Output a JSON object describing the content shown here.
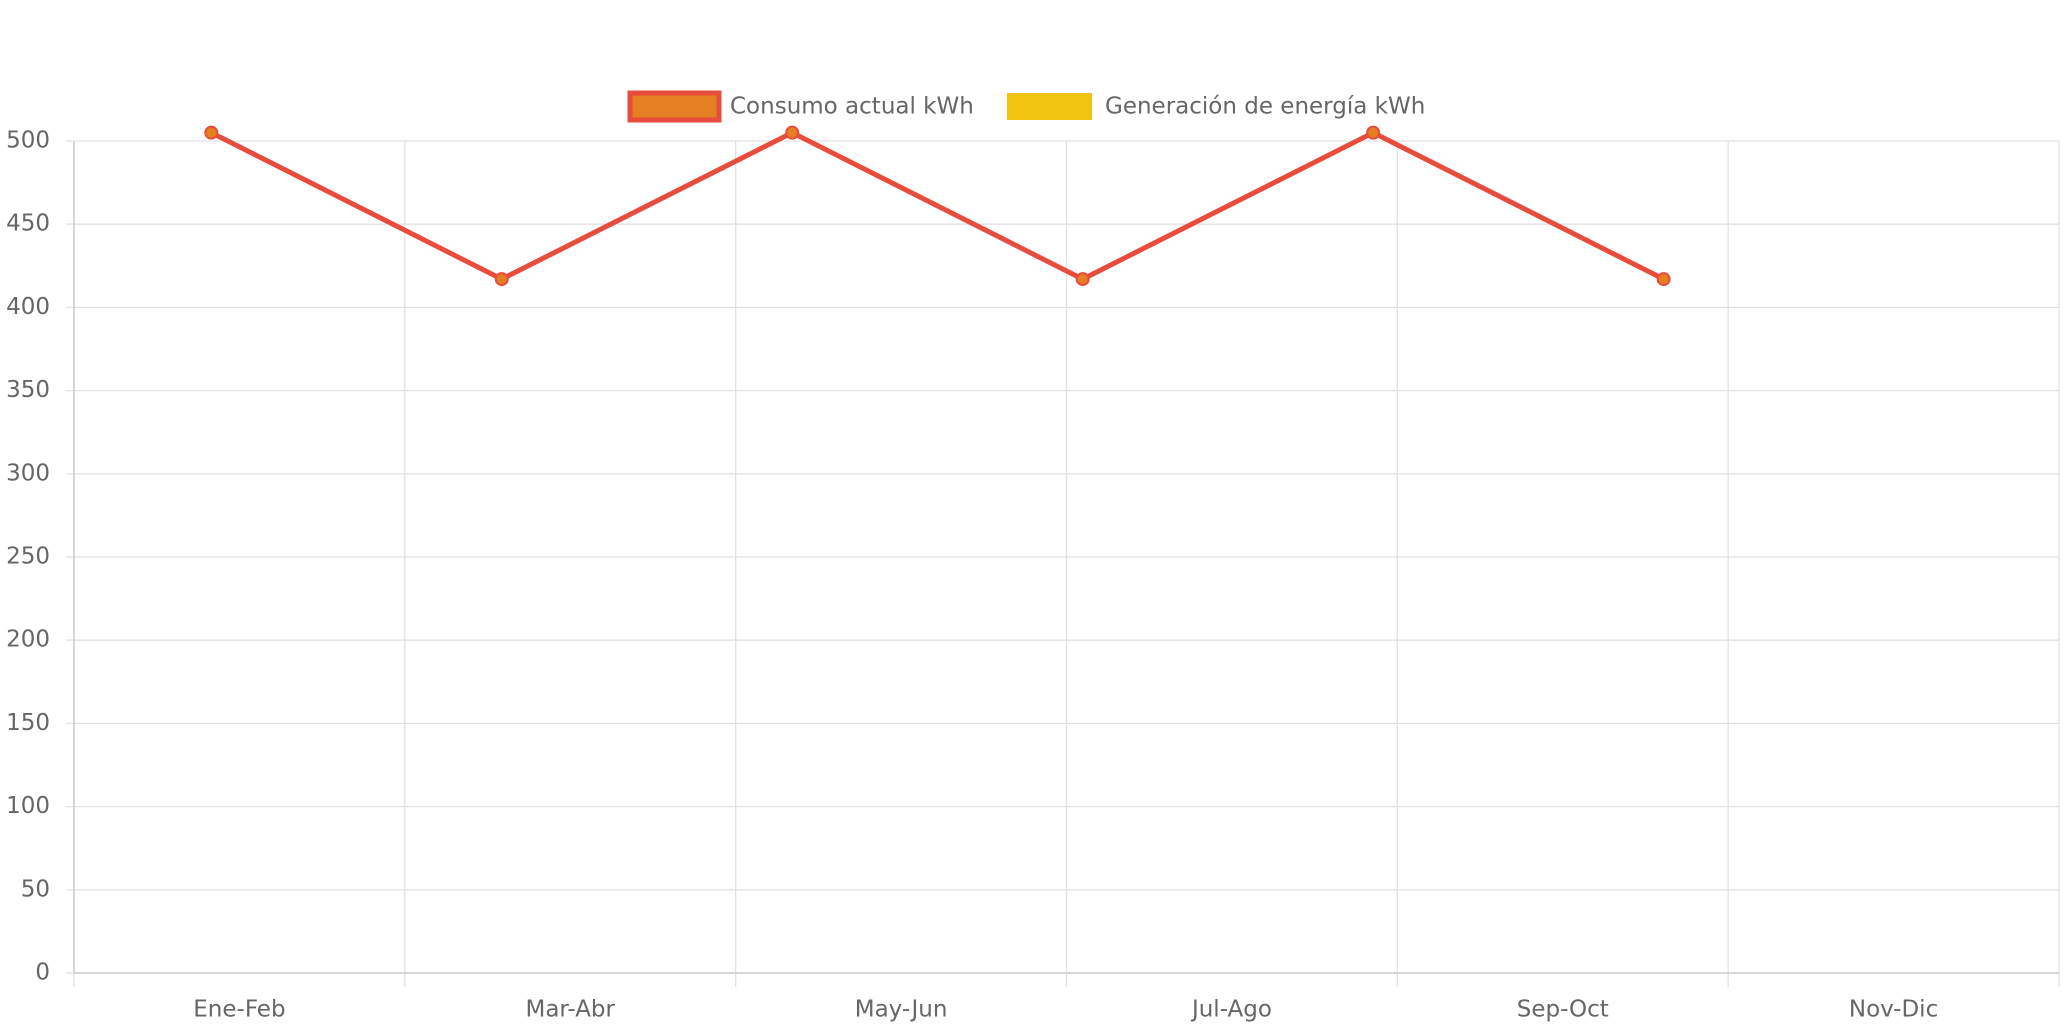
{
  "chart_data": {
    "type": "line",
    "categories": [
      "Ene-Feb",
      "Mar-Abr",
      "May-Jun",
      "Jul-Ago",
      "Sep-Oct",
      "Nov-Dic"
    ],
    "series": [
      {
        "name": "Consumo actual kWh",
        "color": "#e74c3c",
        "point_color": "#e67e22",
        "values": [
          505,
          417,
          505,
          417,
          505,
          417
        ]
      },
      {
        "name": "Generación de energía kWh",
        "color": "#f1c40f",
        "values": [
          null,
          null,
          null,
          null,
          null,
          null
        ]
      }
    ],
    "ylim": [
      0,
      500
    ],
    "yticks": [
      0,
      50,
      100,
      150,
      200,
      250,
      300,
      350,
      400,
      450,
      500
    ],
    "grid": true,
    "legend": "top"
  }
}
